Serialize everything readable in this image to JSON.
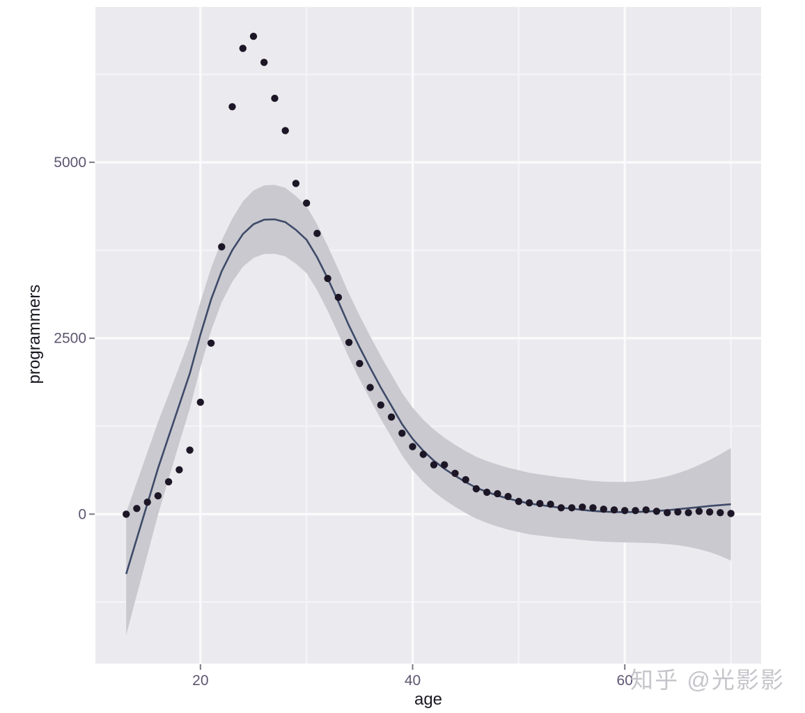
{
  "chart_data": {
    "type": "scatter",
    "title": "",
    "xlabel": "age",
    "ylabel": "programmers",
    "x_ticks": [
      20,
      40,
      60
    ],
    "x_minor_ticks": [
      30,
      50,
      70
    ],
    "y_ticks": [
      0,
      2500,
      5000
    ],
    "y_minor_ticks": [
      -1250,
      1250,
      3750,
      6250
    ],
    "xlim": [
      10.1,
      72.85
    ],
    "ylim": [
      -2124,
      7208
    ],
    "grid": true,
    "legend": "none",
    "points": {
      "x": [
        13,
        14,
        15,
        16,
        17,
        18,
        19,
        20,
        21,
        22,
        23,
        24,
        25,
        26,
        27,
        28,
        29,
        30,
        31,
        32,
        33,
        34,
        35,
        36,
        37,
        38,
        39,
        40,
        41,
        42,
        43,
        44,
        45,
        46,
        47,
        48,
        49,
        50,
        51,
        52,
        53,
        54,
        55,
        56,
        57,
        58,
        59,
        60,
        61,
        62,
        63,
        64,
        65,
        66,
        67,
        68,
        69,
        70
      ],
      "y": [
        0,
        80,
        170,
        260,
        460,
        630,
        910,
        1590,
        2430,
        3800,
        5790,
        6620,
        6790,
        6420,
        5910,
        5450,
        4700,
        4420,
        3990,
        3350,
        3080,
        2440,
        2140,
        1800,
        1550,
        1380,
        1150,
        960,
        850,
        700,
        700,
        580,
        490,
        360,
        310,
        290,
        250,
        180,
        160,
        150,
        140,
        90,
        90,
        100,
        90,
        70,
        60,
        50,
        50,
        60,
        40,
        20,
        30,
        20,
        40,
        30,
        20,
        10
      ]
    },
    "smooth": {
      "x": [
        13,
        14,
        15,
        16,
        17,
        18,
        19,
        20,
        21,
        22,
        23,
        24,
        25,
        26,
        27,
        28,
        29,
        30,
        31,
        32,
        33,
        34,
        35,
        36,
        37,
        38,
        39,
        40,
        41,
        42,
        43,
        44,
        45,
        46,
        47,
        48,
        49,
        50,
        51,
        52,
        53,
        54,
        55,
        56,
        57,
        58,
        59,
        60,
        61,
        62,
        63,
        64,
        65,
        66,
        67,
        68,
        69,
        70
      ],
      "y": [
        -850,
        -350,
        150,
        650,
        1100,
        1550,
        2000,
        2550,
        3050,
        3450,
        3750,
        3980,
        4120,
        4185,
        4190,
        4150,
        4040,
        3900,
        3650,
        3350,
        3020,
        2680,
        2370,
        2080,
        1800,
        1540,
        1280,
        1070,
        900,
        760,
        645,
        545,
        455,
        375,
        315,
        265,
        220,
        185,
        150,
        130,
        110,
        90,
        78,
        60,
        45,
        35,
        30,
        28,
        30,
        35,
        45,
        55,
        70,
        85,
        100,
        115,
        128,
        140
      ],
      "ci_half_width": [
        870,
        800,
        730,
        660,
        600,
        545,
        500,
        465,
        447,
        440,
        450,
        465,
        480,
        488,
        490,
        488,
        482,
        475,
        468,
        462,
        458,
        455,
        452,
        450,
        448,
        446,
        445,
        444,
        443,
        442,
        441,
        441,
        440,
        440,
        440,
        440,
        440,
        440,
        438,
        436,
        434,
        432,
        430,
        428,
        427,
        427,
        428,
        430,
        435,
        445,
        460,
        482,
        512,
        550,
        598,
        655,
        722,
        800
      ]
    },
    "colors": {
      "panel_bg": "#ebebef",
      "grid_major": "#fafafb",
      "grid_minor": "#f4f4f7",
      "ribbon": "#c9c9cf",
      "smooth_line": "#3e4a68",
      "point": "#1c1626",
      "tick_mark": "#7c7685",
      "tick_label": "#5e5570",
      "axis_title": "#1a181f",
      "watermark": "#c6c5cb"
    },
    "watermark": "知乎 @光影影"
  }
}
